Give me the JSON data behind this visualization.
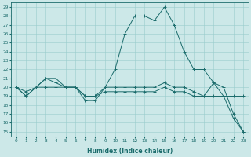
{
  "xlabel": "Humidex (Indice chaleur)",
  "bg_color": "#cce8e8",
  "grid_color": "#99cccc",
  "line_color": "#1a6b6b",
  "xlim": [
    -0.5,
    23.5
  ],
  "ylim": [
    14.5,
    29.5
  ],
  "yticks": [
    15,
    16,
    17,
    18,
    19,
    20,
    21,
    22,
    23,
    24,
    25,
    26,
    27,
    28,
    29
  ],
  "xticks": [
    0,
    1,
    2,
    3,
    4,
    5,
    6,
    7,
    8,
    9,
    10,
    11,
    12,
    13,
    14,
    15,
    16,
    17,
    18,
    19,
    20,
    21,
    22,
    23
  ],
  "x": [
    0,
    1,
    2,
    3,
    4,
    5,
    6,
    7,
    8,
    9,
    10,
    11,
    12,
    13,
    14,
    15,
    16,
    17,
    18,
    19,
    20,
    21,
    22,
    23
  ],
  "line1": [
    20,
    19,
    20,
    20,
    20,
    20,
    20,
    19,
    19,
    19.5,
    19.5,
    19.5,
    19.5,
    19.5,
    19.5,
    20,
    19.5,
    19.5,
    19,
    19,
    20.5,
    19,
    19,
    19
  ],
  "line2": [
    20,
    19,
    20,
    21,
    21,
    20,
    20,
    18.5,
    18.5,
    20,
    22,
    26,
    28,
    28,
    27.5,
    29,
    27,
    24,
    22,
    22,
    20.5,
    20,
    17,
    15
  ],
  "line3": [
    20,
    19.5,
    20,
    21,
    20.5,
    20,
    20,
    19,
    19,
    20,
    20,
    20,
    20,
    20,
    20,
    20.5,
    20,
    20,
    19.5,
    19,
    19,
    19,
    16.5,
    15
  ]
}
